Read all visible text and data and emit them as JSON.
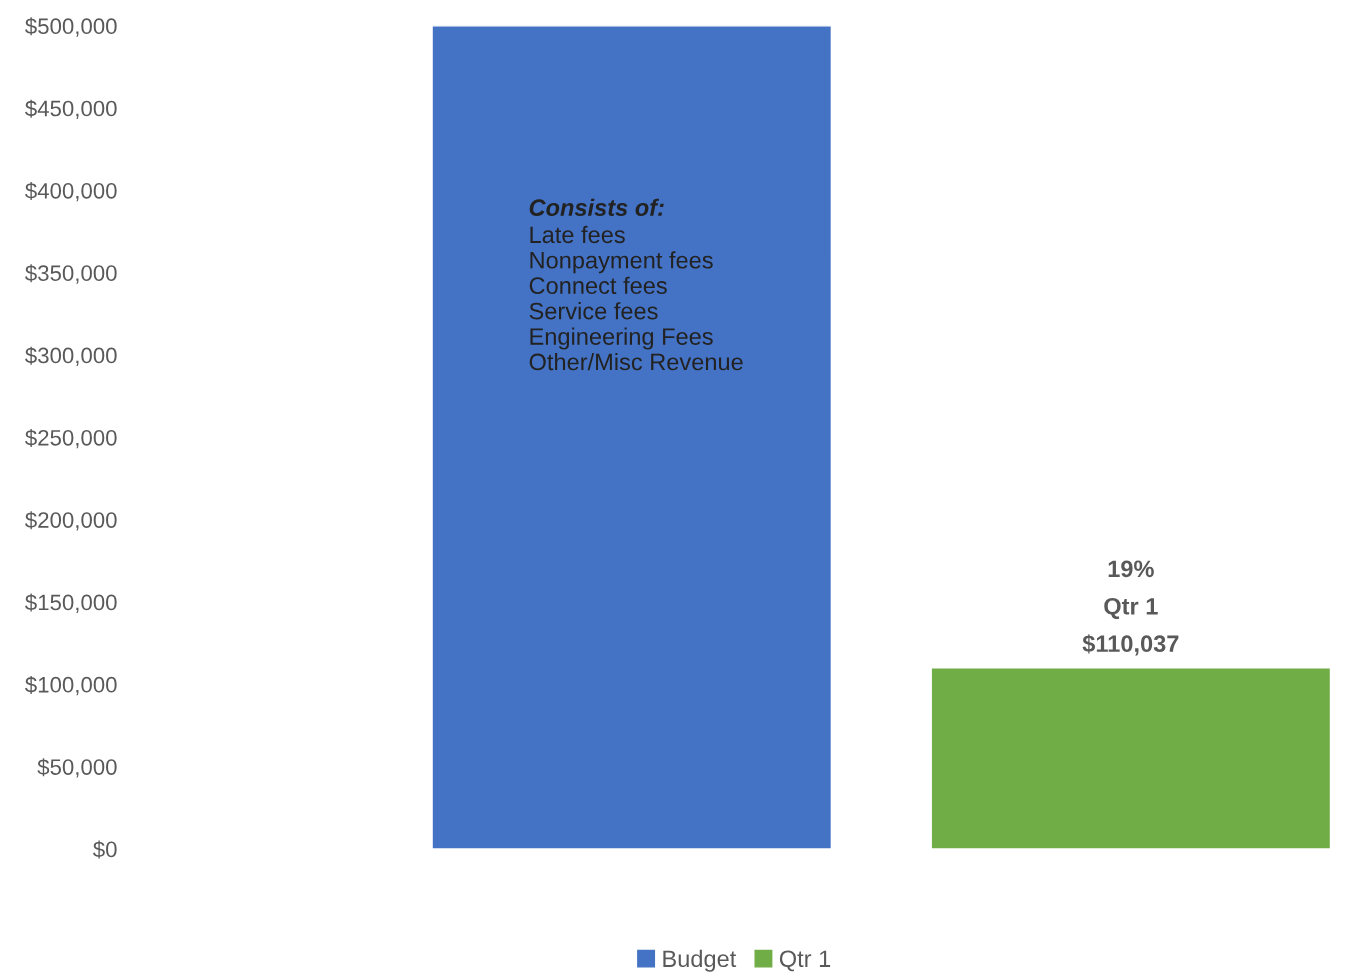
{
  "chart_data": {
    "type": "bar",
    "categories": [
      null
    ],
    "series": [
      {
        "name": "Budget",
        "color": "#4472c4",
        "values": [
          500000
        ]
      },
      {
        "name": "Qtr 1",
        "color": "#70ad47",
        "values": [
          110037
        ],
        "value_labels": [
          "19%\nQtr 1\n$110,037"
        ]
      }
    ],
    "annotations": [
      "Consists of:",
      "Late fees\nNonpayment fees\nConnect fees\nService fees\nEngineering Fees\nOther/Misc Revenue"
    ],
    "ylim": [
      0,
      500000
    ],
    "yticks": [
      {
        "value": 0,
        "label": "$0"
      },
      {
        "value": 50000,
        "label": "$50,000"
      },
      {
        "value": 100000,
        "label": "$100,000"
      },
      {
        "value": 150000,
        "label": "$150,000"
      },
      {
        "value": 200000,
        "label": "$200,000"
      },
      {
        "value": 250000,
        "label": "$250,000"
      },
      {
        "value": 300000,
        "label": "$300,000"
      },
      {
        "value": 350000,
        "label": "$350,000"
      },
      {
        "value": 400000,
        "label": "$400,000"
      },
      {
        "value": 450000,
        "label": "$450,000"
      },
      {
        "value": 500000,
        "label": "$500,000"
      }
    ],
    "grid": false,
    "legend": "bottom"
  }
}
